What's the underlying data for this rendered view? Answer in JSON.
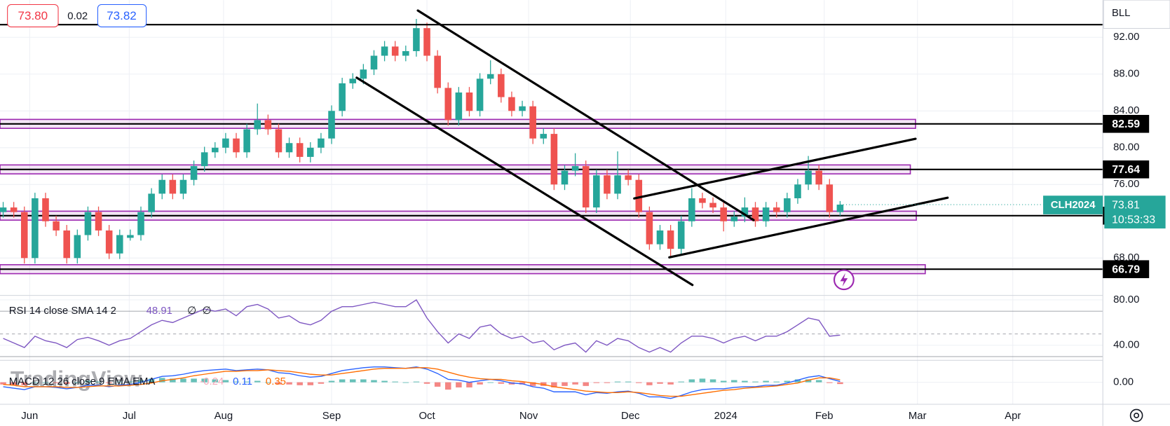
{
  "toolbar": {
    "quote": [
      "73.80",
      "0.02",
      "73.82"
    ],
    "menu": "BLL"
  },
  "chart_data": {
    "type": "candlestick",
    "symbol": "CLH2024",
    "countdown": "10:53:33",
    "watermark": "TradingView",
    "xlim": [
      -0.3,
      103.8
    ],
    "xticks": [
      {
        "value": 2.5,
        "label": "Jun"
      },
      {
        "value": 11.9,
        "label": "Jul"
      },
      {
        "value": 20.8,
        "label": "Aug"
      },
      {
        "value": 31.0,
        "label": "Sep"
      },
      {
        "value": 40.0,
        "label": "Oct"
      },
      {
        "value": 49.6,
        "label": "Nov"
      },
      {
        "value": 59.2,
        "label": "Dec"
      },
      {
        "value": 68.2,
        "label": "2024"
      },
      {
        "value": 77.5,
        "label": "Feb"
      },
      {
        "value": 86.3,
        "label": "Mar"
      },
      {
        "value": 95.3,
        "label": "Apr"
      }
    ],
    "ylim": [
      64.02,
      96.05
    ],
    "yticks": [
      {
        "value": 68,
        "label": "68.00"
      },
      {
        "value": 76,
        "label": "76.00"
      },
      {
        "value": 80,
        "label": "80.00"
      },
      {
        "value": 84,
        "label": "84.00"
      },
      {
        "value": 88,
        "label": "88.00"
      },
      {
        "value": 92,
        "label": "92.00"
      }
    ],
    "grid": true,
    "up_color": "#26a69a",
    "down_color": "#ef5350",
    "level_color": "#000000",
    "zone_color": "#9c27b0",
    "levels": [
      82.59,
      77.64,
      72.61,
      66.79
    ],
    "candles": [
      [
        73,
        74.1,
        72.4,
        73.5
      ],
      [
        73.5,
        74.1,
        72.4,
        73
      ],
      [
        73,
        73.6,
        67.4,
        68
      ],
      [
        68,
        75.1,
        67.4,
        74.5
      ],
      [
        74.5,
        75.1,
        71.4,
        72
      ],
      [
        72,
        72.6,
        70.4,
        71
      ],
      [
        71,
        71.6,
        67.4,
        68
      ],
      [
        68,
        71.1,
        67.4,
        70.5
      ],
      [
        70.5,
        73.6,
        69.9,
        73
      ],
      [
        73,
        73.6,
        70.4,
        71
      ],
      [
        71,
        71.6,
        67.9,
        68.5
      ],
      [
        68.5,
        71.1,
        67.9,
        70.5
      ],
      [
        70.2,
        71.1,
        69.9,
        70.5
      ],
      [
        70.5,
        73.6,
        69.9,
        73
      ],
      [
        73,
        75.6,
        72.4,
        75
      ],
      [
        75,
        77.1,
        74.4,
        76.5
      ],
      [
        76.5,
        77.1,
        74.4,
        75
      ],
      [
        75,
        77.1,
        74.4,
        76.5
      ],
      [
        76.5,
        78.6,
        75.9,
        78
      ],
      [
        78,
        80.1,
        77.4,
        79.5
      ],
      [
        79.5,
        80.6,
        78.9,
        80
      ],
      [
        80,
        81.6,
        79.4,
        81
      ],
      [
        81,
        81.6,
        78.9,
        79.5
      ],
      [
        79.5,
        82.6,
        78.9,
        82
      ],
      [
        82,
        84.8,
        81.4,
        83
      ],
      [
        83,
        83.6,
        81.4,
        82
      ],
      [
        82,
        82.6,
        78.9,
        79.5
      ],
      [
        79.5,
        81.1,
        78.9,
        80.5
      ],
      [
        80.5,
        81.1,
        78.4,
        79
      ],
      [
        79,
        80.6,
        78.4,
        80
      ],
      [
        80,
        81.6,
        79.4,
        81
      ],
      [
        81,
        84.6,
        80.4,
        84
      ],
      [
        84,
        87.6,
        83.4,
        87
      ],
      [
        87,
        88.1,
        86.4,
        87.5
      ],
      [
        87.5,
        89.1,
        86.9,
        88.5
      ],
      [
        88.5,
        90.6,
        87.9,
        90
      ],
      [
        90,
        91.6,
        89.4,
        91
      ],
      [
        91,
        91.6,
        89.4,
        90
      ],
      [
        90,
        91.1,
        89.4,
        90.5
      ],
      [
        90.5,
        94,
        89.9,
        93
      ],
      [
        93,
        93.6,
        89.4,
        90
      ],
      [
        90,
        90.6,
        85.9,
        86.5
      ],
      [
        86.5,
        87.1,
        82.4,
        83
      ],
      [
        83,
        86.6,
        82.4,
        86
      ],
      [
        86,
        86.6,
        83.4,
        84
      ],
      [
        84,
        88.1,
        83.4,
        87.5
      ],
      [
        87.5,
        89.5,
        86.9,
        88
      ],
      [
        88,
        88.6,
        84.9,
        85.5
      ],
      [
        85.5,
        86.1,
        83.4,
        84
      ],
      [
        84,
        85.1,
        83.4,
        84.5
      ],
      [
        84.5,
        85.1,
        80.4,
        81
      ],
      [
        81,
        82.1,
        80.4,
        81.5
      ],
      [
        81.5,
        82.1,
        75.4,
        76
      ],
      [
        76,
        78.1,
        75.4,
        77.5
      ],
      [
        77.5,
        79.4,
        76.9,
        78
      ],
      [
        78,
        78.6,
        72.9,
        73.5
      ],
      [
        73.5,
        77.6,
        72.9,
        77
      ],
      [
        77,
        77.6,
        74.4,
        75
      ],
      [
        75,
        79.6,
        74.4,
        77
      ],
      [
        77,
        77.6,
        75.9,
        76.5
      ],
      [
        76.5,
        77.1,
        72.4,
        73
      ],
      [
        73,
        73.6,
        68.9,
        69.5
      ],
      [
        69.5,
        71.6,
        68.9,
        71
      ],
      [
        71,
        71.6,
        68.1,
        69
      ],
      [
        69,
        72.6,
        68.4,
        72
      ],
      [
        72,
        75.6,
        71.4,
        74.5
      ],
      [
        74.5,
        75.1,
        73.4,
        74
      ],
      [
        74,
        74.6,
        72.9,
        73.5
      ],
      [
        73.5,
        74.1,
        70.9,
        72
      ],
      [
        72,
        73.1,
        71.4,
        72.5
      ],
      [
        72.5,
        74.6,
        71.9,
        73.5
      ],
      [
        73.5,
        74.1,
        71.4,
        72
      ],
      [
        72,
        74.1,
        71.4,
        73.5
      ],
      [
        73.5,
        74.1,
        72.4,
        73
      ],
      [
        73,
        75.1,
        72.4,
        74.5
      ],
      [
        74.5,
        76.6,
        73.9,
        76
      ],
      [
        76,
        79.1,
        75.4,
        77.5
      ],
      [
        77.5,
        78.1,
        75.4,
        76
      ],
      [
        76,
        76.6,
        72.4,
        73
      ],
      [
        73,
        74.2,
        72.6,
        73.81
      ]
    ],
    "rsi": {
      "type": "line",
      "label": "RSI 14 close SMA 14 2",
      "na": [
        "∅",
        "∅"
      ],
      "color": "#7e57c2",
      "ylim": [
        27.4,
        83.3
      ],
      "yticks": [
        {
          "value": 80,
          "label": "80.00"
        },
        {
          "value": 40,
          "label": "40.00"
        }
      ],
      "bands": [
        70,
        50,
        30
      ],
      "values": [
        46,
        42,
        38,
        48,
        44,
        42,
        38,
        45,
        47,
        44,
        40,
        44,
        46,
        52,
        58,
        62,
        60,
        64,
        68,
        72,
        70,
        72,
        66,
        74,
        76,
        72,
        64,
        66,
        60,
        58,
        62,
        70,
        74,
        74,
        76,
        78,
        76,
        74,
        74,
        80,
        64,
        52,
        42,
        50,
        46,
        56,
        58,
        50,
        46,
        48,
        42,
        44,
        36,
        40,
        42,
        34,
        44,
        40,
        46,
        44,
        38,
        34,
        38,
        34,
        42,
        48,
        48,
        46,
        42,
        46,
        48,
        44,
        48,
        48,
        52,
        58,
        64,
        62,
        48,
        48.91
      ]
    },
    "macd": {
      "type": "line",
      "label": "MACD 12 26 close 9 EMA EMA",
      "ylim": [
        -2.8,
        2.8
      ],
      "yticks": [
        {
          "value": 0,
          "label": "0.00"
        }
      ],
      "macd_color": "#2962ff",
      "signal_color": "#ff6d00",
      "hist_up_color": "#26a69a",
      "hist_down_color": "#ef5350",
      "hist_label_color": "#f7a8b8",
      "macd": [
        -0.6,
        -0.8,
        -1.0,
        -0.6,
        -0.6,
        -0.7,
        -0.9,
        -0.7,
        -0.4,
        -0.4,
        -0.6,
        -0.4,
        -0.3,
        0,
        0.4,
        0.8,
        0.9,
        1.1,
        1.4,
        1.6,
        1.7,
        1.8,
        1.6,
        1.7,
        1.8,
        1.7,
        1.3,
        1.2,
        0.9,
        0.7,
        0.8,
        1.2,
        1.6,
        1.8,
        2.0,
        2.1,
        2.1,
        2.0,
        1.9,
        2.1,
        1.8,
        1.2,
        0.4,
        0.3,
        0,
        0.2,
        0.4,
        0.2,
        -0.1,
        -0.2,
        -0.6,
        -0.8,
        -1.3,
        -1.3,
        -1.3,
        -1.7,
        -1.4,
        -1.5,
        -1.3,
        -1.2,
        -1.5,
        -2.0,
        -2.0,
        -2.2,
        -1.8,
        -1.3,
        -1.0,
        -0.9,
        -0.9,
        -0.7,
        -0.6,
        -0.6,
        -0.4,
        -0.4,
        -0.1,
        0.3,
        0.7,
        0.9,
        0.5,
        0.11
      ],
      "signal": [
        -0.3,
        -0.4,
        -0.6,
        -0.6,
        -0.6,
        -0.6,
        -0.7,
        -0.7,
        -0.6,
        -0.5,
        -0.5,
        -0.5,
        -0.4,
        -0.3,
        -0.1,
        0.2,
        0.4,
        0.6,
        0.9,
        1.1,
        1.3,
        1.5,
        1.5,
        1.6,
        1.6,
        1.7,
        1.6,
        1.5,
        1.3,
        1.1,
        1.0,
        1.0,
        1.2,
        1.4,
        1.6,
        1.8,
        1.9,
        1.9,
        1.9,
        2.0,
        2.0,
        1.8,
        1.4,
        1.0,
        0.7,
        0.5,
        0.4,
        0.4,
        0.2,
        0.1,
        -0.1,
        -0.3,
        -0.6,
        -0.8,
        -1.0,
        -1.2,
        -1.3,
        -1.4,
        -1.4,
        -1.3,
        -1.4,
        -1.6,
        -1.8,
        -1.9,
        -1.9,
        -1.7,
        -1.5,
        -1.3,
        -1.1,
        -1.0,
        -0.8,
        -0.7,
        -0.6,
        -0.5,
        -0.3,
        -0.1,
        0.3,
        0.6,
        0.6,
        0.35
      ],
      "hist": [
        -0.3,
        -0.4,
        -0.4,
        0,
        0,
        -0.1,
        -0.2,
        0,
        0.2,
        0.1,
        -0.1,
        0.1,
        0.1,
        0.3,
        0.5,
        0.6,
        0.5,
        0.5,
        0.5,
        0.5,
        0.4,
        0.3,
        0.1,
        0.1,
        0.2,
        0,
        -0.3,
        -0.3,
        -0.4,
        -0.4,
        -0.2,
        0.2,
        0.4,
        0.4,
        0.4,
        0.3,
        0.2,
        0.1,
        0,
        0.1,
        -0.2,
        -0.6,
        -1.0,
        -0.7,
        -0.7,
        -0.3,
        0,
        -0.2,
        -0.3,
        -0.3,
        -0.5,
        -0.5,
        -0.7,
        -0.5,
        -0.3,
        -0.5,
        -0.1,
        -0.1,
        0.1,
        0.1,
        -0.1,
        -0.4,
        -0.2,
        -0.3,
        0.1,
        0.4,
        0.5,
        0.4,
        0.2,
        0.3,
        0.2,
        0.1,
        0.2,
        0.1,
        0.2,
        0.4,
        0.4,
        0.3,
        -0.1,
        -0.24
      ]
    }
  }
}
